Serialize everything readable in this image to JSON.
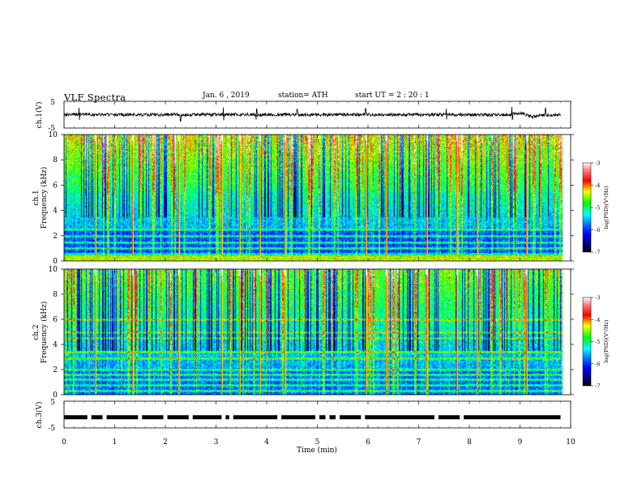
{
  "header": {
    "title": "VLF  Spectra",
    "date": "Jan. 6  , 2019",
    "station": "station= ATH",
    "start_ut": "start  UT  =   2  : 20 : 1"
  },
  "colors": {
    "trace": "#000000",
    "colormap": [
      "#000000",
      "#00007a",
      "#0000ff",
      "#0080ff",
      "#00ffff",
      "#00ff00",
      "#ffff00",
      "#ff0000",
      "#ff8080",
      "#ffffff"
    ]
  },
  "chart_data": [
    {
      "type": "line",
      "panel": "ch1",
      "ylabel": "ch.1(V)",
      "yticks": [
        "5",
        "-5"
      ],
      "ylim": [
        -5,
        5
      ],
      "xlim": [
        0,
        10
      ],
      "data_end_min": 9.8,
      "baseline": 0,
      "noise_amplitude": 0.6,
      "spikes_min": [
        0.3,
        2.3,
        3.15,
        3.8,
        4.6,
        5.95,
        7.55,
        8.85,
        9.5
      ]
    },
    {
      "type": "heatmap",
      "panel": "ch1",
      "ylabel_line1": "ch.1",
      "ylabel_line2": "Frequency  (kHz)",
      "yticks": [
        "0",
        "2",
        "4",
        "6",
        "8",
        "10"
      ],
      "ylim": [
        0,
        10
      ],
      "xlim": [
        0,
        10
      ],
      "colorbar": {
        "label": "log(PSD)(V²/Hz)",
        "ticks": [
          "-3",
          "-4",
          "-5",
          "-6",
          "-7"
        ],
        "range": [
          -7,
          -3
        ]
      },
      "bands_khz": [
        0.3,
        0.6,
        1.0,
        1.5,
        2.0,
        2.5
      ]
    },
    {
      "type": "heatmap",
      "panel": "ch2",
      "ylabel_line1": "ch.2",
      "ylabel_line2": "Frequency  (kHz)",
      "yticks": [
        "0",
        "2",
        "4",
        "6",
        "8",
        "10"
      ],
      "ylim": [
        0,
        10
      ],
      "xlim": [
        0,
        10
      ],
      "colorbar": {
        "label": "log(PSD)(V²/Hz)",
        "ticks": [
          "-3",
          "-4",
          "-5",
          "-6",
          "-7"
        ],
        "range": [
          -7,
          -3
        ]
      },
      "bands_khz": [
        0.3,
        0.8,
        1.2,
        1.6,
        2.0,
        2.9,
        3.4,
        4.5,
        5.0,
        6.0
      ]
    },
    {
      "type": "line",
      "panel": "ch3",
      "ylabel": "ch.3(V)",
      "yticks": [
        "5",
        "-5"
      ],
      "ylim": [
        -5,
        5
      ],
      "xlim": [
        0,
        10
      ],
      "data_end_min": 9.8,
      "level": -1,
      "gaps_min": [
        0.5,
        0.8,
        1.5,
        2.0,
        2.5,
        3.15,
        3.3,
        4.25,
        5.0,
        5.2,
        5.4,
        5.9,
        7.35,
        7.85
      ]
    }
  ],
  "xaxis": {
    "label": "Time  (min)",
    "ticks": [
      "0",
      "1",
      "2",
      "3",
      "4",
      "5",
      "6",
      "7",
      "8",
      "9",
      "10"
    ],
    "range": [
      0,
      10
    ]
  },
  "spectral_events": {
    "strong_min": [
      0.6,
      1.35,
      2.25,
      3.1,
      3.45,
      3.85,
      4.35,
      5.95,
      6.35,
      7.15,
      7.75,
      8.15,
      9.12
    ],
    "medium_count": 60
  }
}
